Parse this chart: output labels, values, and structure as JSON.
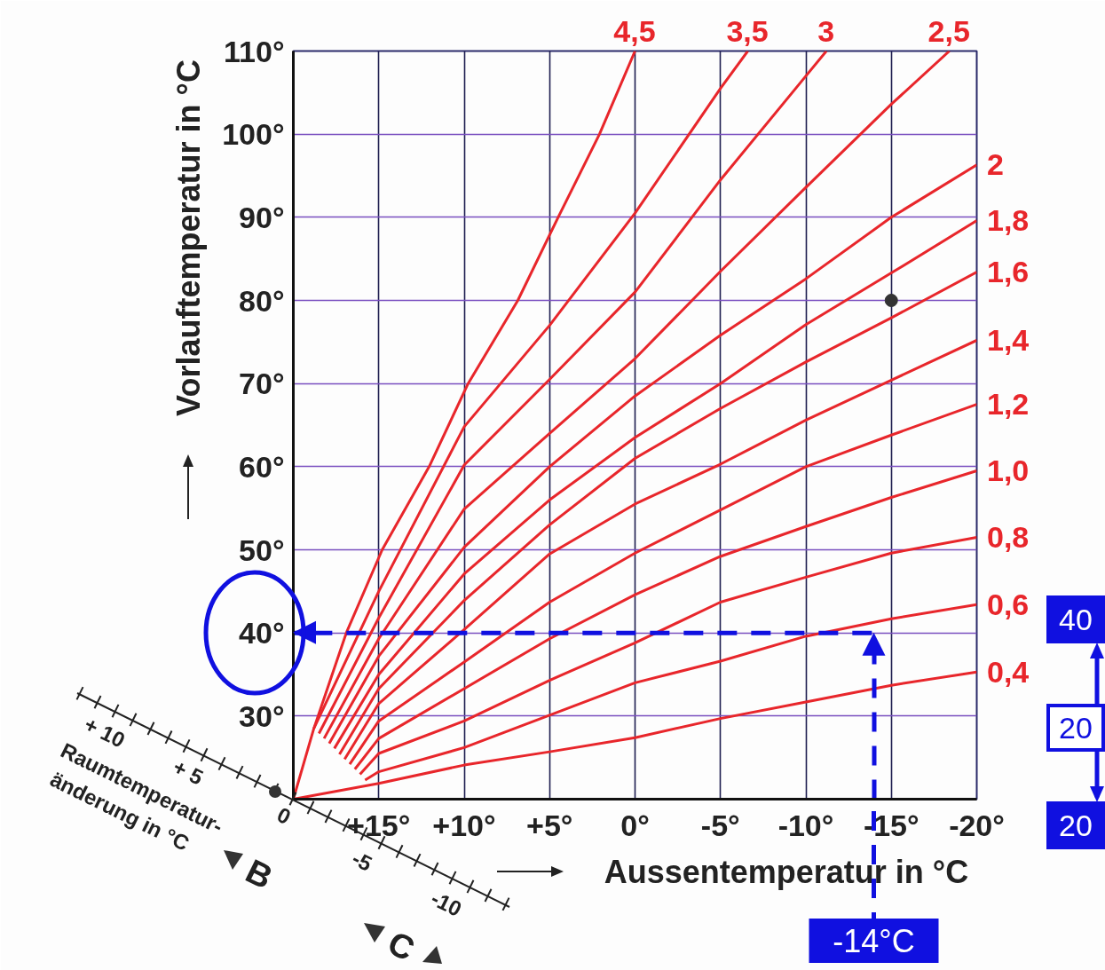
{
  "chart_data": {
    "type": "line",
    "xlabel": "Aussentemperatur in °C",
    "ylabel": "Vorlauftemperatur in °C",
    "xlim": [
      20,
      -20
    ],
    "ylim": [
      20,
      110
    ],
    "xticks": [
      {
        "value": 15,
        "label": "+15°"
      },
      {
        "value": 10,
        "label": "+10°"
      },
      {
        "value": 5,
        "label": "+5°"
      },
      {
        "value": 0,
        "label": "0°"
      },
      {
        "value": -5,
        "label": "-5°"
      },
      {
        "value": -10,
        "label": "-10°"
      },
      {
        "value": -15,
        "label": "-15°"
      },
      {
        "value": -20,
        "label": "-20°"
      }
    ],
    "yticks": [
      {
        "value": 30,
        "label": "30°"
      },
      {
        "value": 40,
        "label": "40°"
      },
      {
        "value": 50,
        "label": "50°"
      },
      {
        "value": 60,
        "label": "60°"
      },
      {
        "value": 70,
        "label": "70°"
      },
      {
        "value": 80,
        "label": "80°"
      },
      {
        "value": 90,
        "label": "90°"
      },
      {
        "value": 100,
        "label": "100°"
      },
      {
        "value": 110,
        "label": "110°"
      }
    ],
    "grid": true,
    "series": [
      {
        "name": "4,5",
        "color": "#e8262b",
        "x": [
          20,
          18.8,
          16.9,
          14.8,
          12.05,
          9.77,
          6.86,
          4.5,
          2.08,
          0
        ],
        "values": [
          20,
          28.5,
          40,
          50,
          60,
          70,
          80,
          90,
          100,
          110
        ]
      },
      {
        "name": "3,5",
        "color": "#e8262b",
        "x": [
          18.8,
          15,
          10,
          5,
          0,
          -5,
          -6.6
        ],
        "values": [
          28.5,
          45,
          64.8,
          77,
          90.5,
          105.5,
          110
        ]
      },
      {
        "name": "3",
        "color": "#e8262b",
        "x": [
          18.5,
          15,
          10,
          5,
          0,
          -5,
          -10,
          -11.2
        ],
        "values": [
          27.9,
          41.8,
          60.2,
          70.5,
          81,
          94.5,
          107,
          110
        ]
      },
      {
        "name": "2,5",
        "color": "#e8262b",
        "x": [
          18.2,
          15,
          10,
          5,
          0,
          -5,
          -10,
          -15,
          -18.4
        ],
        "values": [
          27.3,
          39.3,
          54.9,
          64,
          73,
          83.5,
          93.6,
          103.6,
          110
        ]
      },
      {
        "name": "2",
        "color": "#e8262b",
        "x": [
          17.9,
          15,
          10,
          5,
          0,
          -5,
          -10,
          -15,
          -20
        ],
        "values": [
          26.7,
          37.2,
          50.3,
          60,
          68.5,
          75.8,
          82.6,
          90,
          96.3
        ]
      },
      {
        "name": "1,8",
        "color": "#e8262b",
        "x": [
          17.6,
          15,
          10,
          5,
          0,
          -5,
          -10,
          -15,
          -20
        ],
        "values": [
          26.1,
          35,
          47.1,
          56,
          63.5,
          70,
          77.1,
          83.3,
          89.6
        ]
      },
      {
        "name": "1,6",
        "color": "#e8262b",
        "x": [
          17.3,
          15,
          10,
          5,
          0,
          -5,
          -10,
          -15,
          -20
        ],
        "values": [
          25.4,
          33.3,
          43.9,
          53,
          61,
          67,
          72.6,
          77.9,
          83.4
        ]
      },
      {
        "name": "1,4",
        "color": "#e8262b",
        "x": [
          17,
          15,
          10,
          5,
          0,
          -5,
          -10,
          -15,
          -20
        ],
        "values": [
          24.8,
          31.5,
          40.4,
          49.5,
          55.5,
          60.3,
          65.6,
          70.4,
          75.2
        ]
      },
      {
        "name": "1,2",
        "color": "#e8262b",
        "x": [
          16.7,
          15,
          10,
          5,
          0,
          -5,
          -10,
          -15,
          -20
        ],
        "values": [
          24.2,
          29.4,
          36.5,
          43.7,
          49.6,
          54.8,
          60,
          63.8,
          67.5
        ]
      },
      {
        "name": "1,0",
        "color": "#e8262b",
        "x": [
          16.4,
          15,
          10,
          5,
          0,
          -5,
          -10,
          -15,
          -20
        ],
        "values": [
          23.6,
          27.3,
          33.3,
          39.3,
          44.6,
          49.2,
          52.8,
          56.3,
          59.5
        ]
      },
      {
        "name": "0,8",
        "color": "#e8262b",
        "x": [
          16.1,
          15,
          10,
          5,
          0,
          -5,
          -10,
          -15,
          -20
        ],
        "values": [
          23,
          25.5,
          29.4,
          34.3,
          38.8,
          43.7,
          46.7,
          49.6,
          51.5
        ]
      },
      {
        "name": "0,6",
        "color": "#e8262b",
        "x": [
          15.8,
          15,
          10,
          5,
          0,
          -5,
          -10,
          -15,
          -20
        ],
        "values": [
          22.3,
          23.3,
          26.2,
          30.1,
          34,
          36.6,
          39.6,
          41.7,
          43.4
        ]
      },
      {
        "name": "0,4",
        "color": "#e8262b",
        "x": [
          20,
          15,
          10,
          5,
          0,
          -5,
          -10,
          -15,
          -20
        ],
        "values": [
          20,
          21.9,
          24.1,
          25.7,
          27.4,
          29.7,
          31.7,
          33.7,
          35.3
        ]
      },
      {
        "type": "scatter",
        "marker": "circle",
        "color": "#333333",
        "x": [
          -15
        ],
        "values": [
          80
        ]
      },
      {
        "color": "#1010e0",
        "line_style": "dashed",
        "x": [
          -14,
          -14,
          20
        ],
        "values": [
          20,
          40,
          40
        ]
      }
    ],
    "annotations": [
      "-14°C",
      "40",
      "20",
      "20",
      "+ 10",
      "+ 5",
      "0",
      "-5",
      "-10",
      "Raumtemperatur-",
      "änderung in °C",
      "B",
      "C"
    ]
  }
}
